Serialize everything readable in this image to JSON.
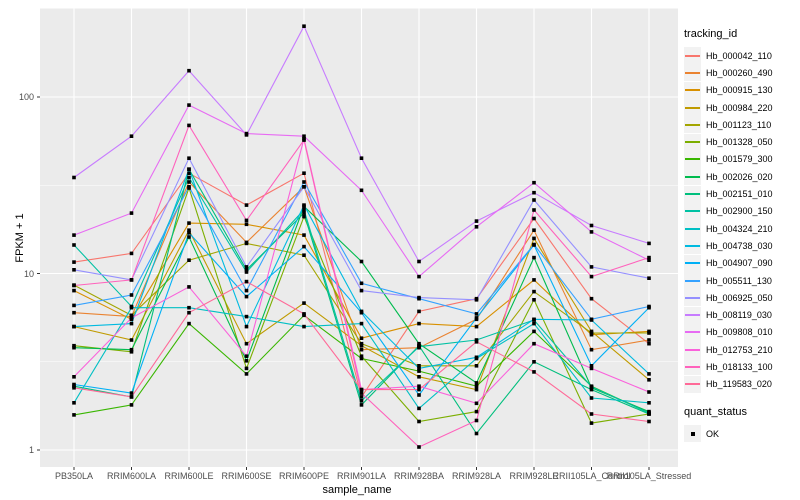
{
  "chart_data": {
    "type": "line",
    "title": "",
    "xlabel": "sample_name",
    "ylabel": "FPKM + 1",
    "yscale": "log10",
    "ytick_labels": [
      "1",
      "10",
      "100"
    ],
    "ytick_values": [
      1,
      10,
      100
    ],
    "minor_gridline_values": [
      3.162,
      31.62,
      316.2
    ],
    "ylim": [
      0.93,
      330
    ],
    "grid": "on",
    "panel_style": "ggplot-grey",
    "categories": [
      "PB350LA",
      "RRIM600LA",
      "RRIM600LE",
      "RRIM600SE",
      "RRIM600PE",
      "RRIM901LA",
      "RRIM928BA",
      "RRIM928LA",
      "RRIM928LE",
      "RRII105LA_Control",
      "RRII105LA_Stressed"
    ],
    "series": [
      {
        "name": "Hb_000042_110",
        "color": "#F8766D",
        "values": [
          11.6,
          13,
          37,
          24.4,
          37,
          2.0,
          6.1,
          7.2,
          20.5,
          7.2,
          4.0
        ]
      },
      {
        "name": "Hb_000260_490",
        "color": "#EA8331",
        "values": [
          6.0,
          5.7,
          33,
          15,
          31,
          3.7,
          3.8,
          5.5,
          17.6,
          3.7,
          4.2
        ]
      },
      {
        "name": "Hb_000915_130",
        "color": "#D89000",
        "values": [
          8.0,
          5.5,
          19.3,
          19,
          16.5,
          4.3,
          5.2,
          5.0,
          9.2,
          4.5,
          4.7
        ]
      },
      {
        "name": "Hb_000984_220",
        "color": "#C09B00",
        "values": [
          5.0,
          4.2,
          17.6,
          4.0,
          6.8,
          3.9,
          2.6,
          2.2,
          15.8,
          4.7,
          2.5
        ]
      },
      {
        "name": "Hb_001123_110",
        "color": "#A3A500",
        "values": [
          8.6,
          5.8,
          11.9,
          14.8,
          12.7,
          4.0,
          3.0,
          3.0,
          7.9,
          4.6,
          4.6
        ]
      },
      {
        "name": "Hb_001328_050",
        "color": "#7CAE00",
        "values": [
          3.9,
          3.6,
          30.5,
          2.9,
          21,
          3.4,
          1.45,
          1.65,
          7.1,
          1.42,
          1.6
        ]
      },
      {
        "name": "Hb_001579_300",
        "color": "#39B600",
        "values": [
          1.58,
          1.8,
          5.2,
          2.7,
          5.8,
          3.3,
          2.8,
          2.3,
          4.7,
          2.3,
          1.62
        ]
      },
      {
        "name": "Hb_002026_020",
        "color": "#00BB4E",
        "values": [
          3.8,
          3.7,
          16.1,
          3.2,
          24,
          11.7,
          4.0,
          2.4,
          12.3,
          2.25,
          1.65
        ]
      },
      {
        "name": "Hb_002151_010",
        "color": "#00BF7D",
        "values": [
          2.3,
          2.0,
          39,
          10.5,
          22,
          1.8,
          3.9,
          1.24,
          3.16,
          2.2,
          1.6
        ]
      },
      {
        "name": "Hb_002900_150",
        "color": "#00C1A3",
        "values": [
          14.5,
          6.5,
          35,
          10.2,
          23,
          1.9,
          3.85,
          4.2,
          5.45,
          2.28,
          1.62
        ]
      },
      {
        "name": "Hb_004324_210",
        "color": "#00BFC4",
        "values": [
          1.85,
          6.4,
          6.4,
          5.7,
          5.0,
          5.2,
          1.72,
          3.3,
          5.2,
          1.97,
          1.85
        ]
      },
      {
        "name": "Hb_004738_030",
        "color": "#00BAE0",
        "values": [
          5.0,
          5.2,
          39,
          5.0,
          24.4,
          6.1,
          2.9,
          3.35,
          5.5,
          5.45,
          2.7
        ]
      },
      {
        "name": "Hb_004907_090",
        "color": "#00B0F6",
        "values": [
          2.35,
          2.1,
          17,
          7.4,
          14.2,
          6.0,
          2.05,
          5.6,
          14.5,
          3.0,
          6.4
        ]
      },
      {
        "name": "Hb_005511_130",
        "color": "#35A2FF",
        "values": [
          6.6,
          7.55,
          31,
          8.0,
          33,
          8.8,
          7.2,
          5.9,
          14.6,
          5.5,
          6.5
        ]
      },
      {
        "name": "Hb_006925_050",
        "color": "#9590FF",
        "values": [
          10.5,
          9.2,
          45,
          10.9,
          31,
          8.0,
          7.3,
          7.1,
          26.1,
          10.9,
          9.4
        ]
      },
      {
        "name": "Hb_008119_030",
        "color": "#C77CFF",
        "values": [
          35,
          60,
          141,
          61,
          252,
          45,
          11.7,
          19.8,
          28.7,
          18.7,
          14.8
        ]
      },
      {
        "name": "Hb_009808_010",
        "color": "#E76BF3",
        "values": [
          16.5,
          22,
          90,
          62,
          60,
          29.6,
          9.6,
          18.4,
          32.7,
          17.2,
          11.9
        ]
      },
      {
        "name": "Hb_012753_210",
        "color": "#FA62DB",
        "values": [
          2.6,
          5.6,
          8.4,
          3.4,
          58,
          2.2,
          2.3,
          1.84,
          4.0,
          2.9,
          2.13
        ]
      },
      {
        "name": "Hb_018133_100",
        "color": "#FF62BC",
        "values": [
          8.55,
          9.2,
          69,
          20,
          57,
          2.1,
          1.04,
          1.47,
          22.9,
          9.6,
          12.3
        ]
      },
      {
        "name": "Hb_119583_020",
        "color": "#FF6A98",
        "values": [
          2.25,
          2.0,
          6.0,
          9.0,
          5.9,
          2.2,
          2.2,
          4.1,
          2.77,
          1.6,
          1.45
        ]
      }
    ],
    "marker": {
      "shape": "black-square",
      "color": "#000000"
    },
    "legend": {
      "title": "tracking_id",
      "position": "right"
    },
    "legend2": {
      "title": "quant_status",
      "items": [
        {
          "label": "OK",
          "marker": "black-square"
        }
      ]
    },
    "colors": {
      "panel_bg": "#EBEBEB",
      "gridline": "#FFFFFF",
      "tick_text": "#4D4D4D",
      "axis_title": "#000000",
      "tick_mark": "#333333"
    }
  }
}
